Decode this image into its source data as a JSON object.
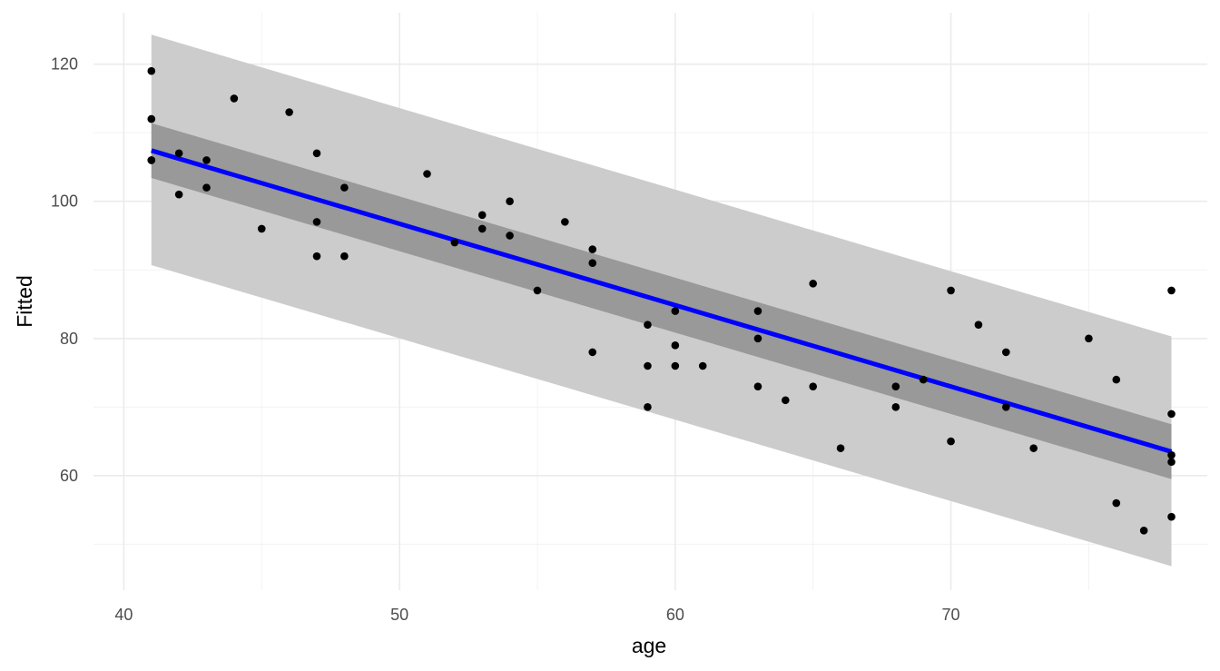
{
  "chart_data": {
    "type": "scatter",
    "title": "",
    "xlabel": "age",
    "ylabel": "Fitted",
    "xlim": [
      38.9,
      79.3
    ],
    "ylim": [
      43.3,
      127.5
    ],
    "x_ticks": [
      40,
      50,
      60,
      70
    ],
    "x_tick_labels": [
      "40",
      "50",
      "60",
      "70"
    ],
    "y_ticks": [
      60,
      80,
      100,
      120
    ],
    "y_tick_labels": [
      "60",
      "80",
      "100",
      "120"
    ],
    "grid": true,
    "legend": "none",
    "colors": {
      "points": "#000000",
      "fit_line": "#0000ff",
      "confidence_band": "#999999",
      "prediction_band": "#cccccc",
      "grid_major": "#ebebeb",
      "grid_minor": "#f3f3f3"
    },
    "fit_line": {
      "x": [
        41,
        78
      ],
      "y": [
        107.4,
        63.5
      ]
    },
    "confidence_band": {
      "x": [
        41,
        78
      ],
      "lower": [
        103.4,
        59.5
      ],
      "upper": [
        111.4,
        67.5
      ]
    },
    "prediction_band": {
      "x": [
        41,
        78
      ],
      "lower": [
        90.7,
        46.8
      ],
      "upper": [
        124.3,
        80.3
      ]
    },
    "points": [
      {
        "x": 41,
        "y": 119
      },
      {
        "x": 41,
        "y": 112
      },
      {
        "x": 41,
        "y": 106
      },
      {
        "x": 41,
        "y": 106
      },
      {
        "x": 42,
        "y": 107
      },
      {
        "x": 42,
        "y": 101
      },
      {
        "x": 43,
        "y": 106
      },
      {
        "x": 43,
        "y": 102
      },
      {
        "x": 44,
        "y": 115
      },
      {
        "x": 45,
        "y": 96
      },
      {
        "x": 46,
        "y": 113
      },
      {
        "x": 47,
        "y": 107
      },
      {
        "x": 47,
        "y": 97
      },
      {
        "x": 47,
        "y": 92
      },
      {
        "x": 48,
        "y": 102
      },
      {
        "x": 48,
        "y": 92
      },
      {
        "x": 51,
        "y": 104
      },
      {
        "x": 52,
        "y": 94
      },
      {
        "x": 53,
        "y": 98
      },
      {
        "x": 53,
        "y": 96
      },
      {
        "x": 54,
        "y": 100
      },
      {
        "x": 54,
        "y": 95
      },
      {
        "x": 55,
        "y": 87
      },
      {
        "x": 56,
        "y": 97
      },
      {
        "x": 57,
        "y": 93
      },
      {
        "x": 57,
        "y": 91
      },
      {
        "x": 57,
        "y": 78
      },
      {
        "x": 59,
        "y": 82
      },
      {
        "x": 59,
        "y": 76
      },
      {
        "x": 59,
        "y": 70
      },
      {
        "x": 60,
        "y": 84
      },
      {
        "x": 60,
        "y": 79
      },
      {
        "x": 60,
        "y": 76
      },
      {
        "x": 61,
        "y": 76
      },
      {
        "x": 63,
        "y": 84
      },
      {
        "x": 63,
        "y": 80
      },
      {
        "x": 63,
        "y": 73
      },
      {
        "x": 64,
        "y": 71
      },
      {
        "x": 65,
        "y": 88
      },
      {
        "x": 65,
        "y": 73
      },
      {
        "x": 66,
        "y": 64
      },
      {
        "x": 68,
        "y": 73
      },
      {
        "x": 68,
        "y": 70
      },
      {
        "x": 69,
        "y": 74
      },
      {
        "x": 70,
        "y": 87
      },
      {
        "x": 70,
        "y": 65
      },
      {
        "x": 71,
        "y": 82
      },
      {
        "x": 72,
        "y": 78
      },
      {
        "x": 72,
        "y": 70
      },
      {
        "x": 73,
        "y": 64
      },
      {
        "x": 75,
        "y": 80
      },
      {
        "x": 76,
        "y": 74
      },
      {
        "x": 76,
        "y": 56
      },
      {
        "x": 77,
        "y": 52
      },
      {
        "x": 78,
        "y": 87
      },
      {
        "x": 78,
        "y": 69
      },
      {
        "x": 78,
        "y": 63
      },
      {
        "x": 78,
        "y": 62
      },
      {
        "x": 78,
        "y": 54
      }
    ]
  }
}
